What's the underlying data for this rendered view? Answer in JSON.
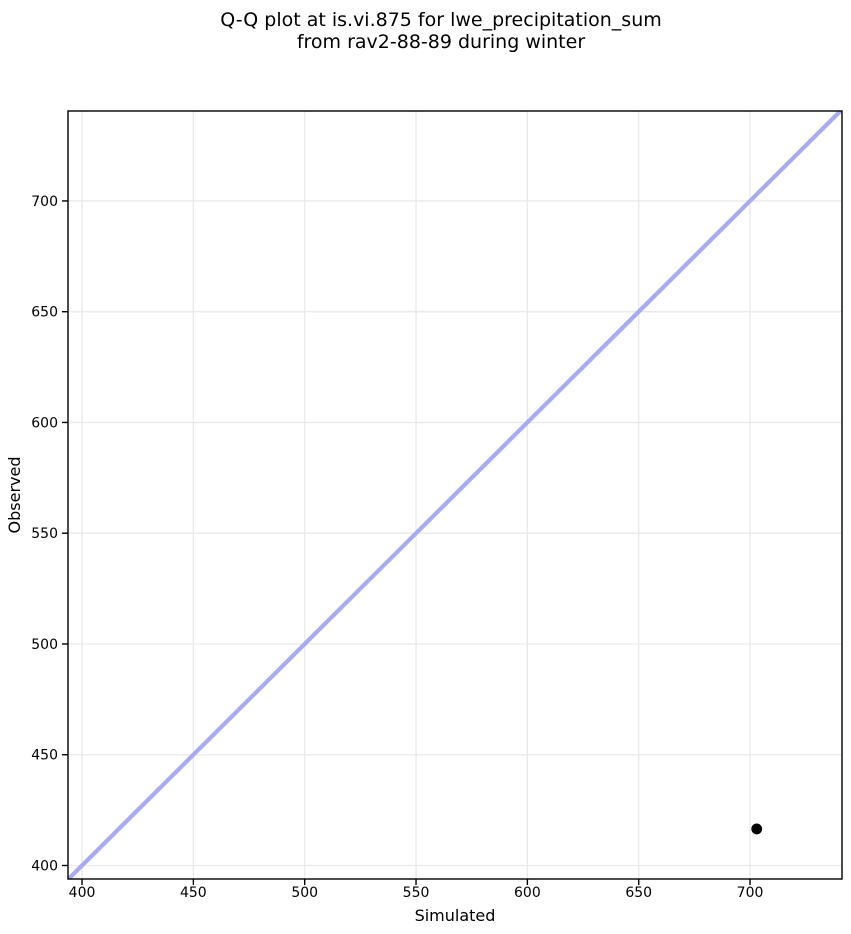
{
  "figure": {
    "title_line1": "Q-Q plot at is.vi.875 for lwe_precipitation_sum",
    "title_line2": "from rav2-88-89 during winter",
    "xlabel": "Simulated",
    "ylabel": "Observed"
  },
  "chart_data": {
    "type": "scatter",
    "title": "Q-Q plot at is.vi.875 for lwe_precipitation_sum\nfrom rav2-88-89 during winter",
    "xlabel": "Simulated",
    "ylabel": "Observed",
    "xlim": [
      393.7,
      741.3
    ],
    "ylim": [
      393.9,
      740.6
    ],
    "xticks": [
      400,
      450,
      500,
      550,
      600,
      650,
      700
    ],
    "yticks": [
      400,
      450,
      500,
      550,
      600,
      650,
      700
    ],
    "grid": true,
    "legend": false,
    "series": [
      {
        "name": "identity-line",
        "type": "line",
        "color": "#a8abf2",
        "points": [
          {
            "x": 393.9,
            "y": 393.9
          },
          {
            "x": 740.6,
            "y": 740.6
          }
        ]
      },
      {
        "name": "quantile-points",
        "type": "scatter",
        "marker": "circle",
        "color": "#000000",
        "points": [
          {
            "x": 703,
            "y": 416.5
          }
        ]
      }
    ],
    "colors": {
      "background": "#ffffff",
      "grid": "#e9e9e9",
      "spine": "#000000",
      "text": "#000000",
      "point": "#000000",
      "identity_line": "#a8abf2"
    }
  }
}
